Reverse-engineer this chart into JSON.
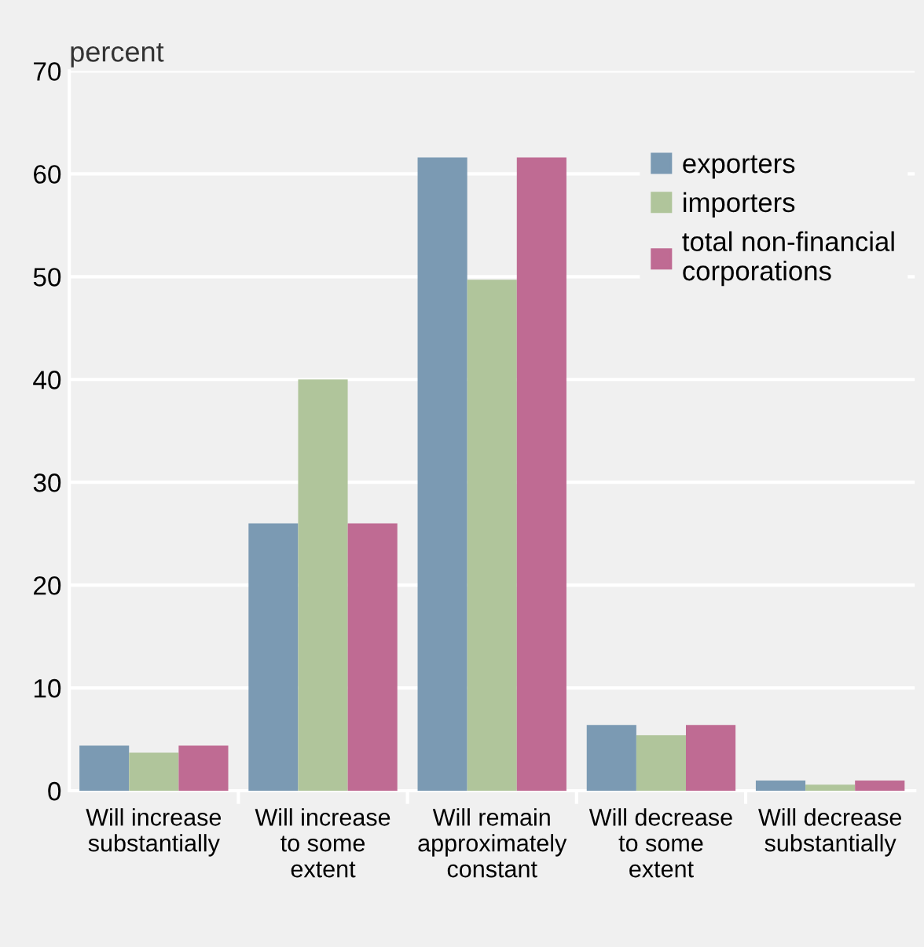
{
  "chart_data": {
    "type": "bar",
    "ylabel": "percent",
    "categories": [
      "Will increase substantially",
      "Will increase to some extent",
      "Will remain approximately constant",
      "Will decrease to some extent",
      "Will decrease substantially"
    ],
    "series": [
      {
        "name": "exporters",
        "color": "#7b9ab3",
        "values": [
          4.4,
          26.0,
          61.6,
          6.4,
          1.0
        ]
      },
      {
        "name": "importers",
        "color": "#b0c59b",
        "values": [
          3.7,
          40.0,
          49.7,
          5.4,
          0.6
        ]
      },
      {
        "name": "total non-financial corporations",
        "color": "#bf6b93",
        "values": [
          4.4,
          26.0,
          61.6,
          6.4,
          1.0
        ]
      }
    ],
    "ylim": [
      0,
      70
    ],
    "yticks": [
      0,
      10,
      20,
      30,
      40,
      50,
      60,
      70
    ],
    "grid": "y",
    "legend": "top right"
  }
}
